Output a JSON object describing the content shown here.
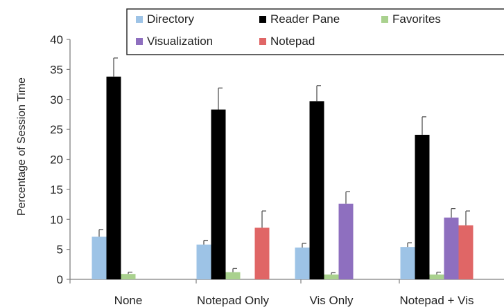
{
  "chart_data": {
    "type": "bar",
    "title": "",
    "xlabel": "",
    "ylabel": "Percentage of Session Time",
    "ylim": [
      0,
      40
    ],
    "yticks": [
      0,
      5,
      10,
      15,
      20,
      25,
      30,
      35,
      40
    ],
    "grid": false,
    "legend_position": "top",
    "categories": [
      "None",
      "Notepad Only",
      "Vis Only",
      "Notepad + Vis"
    ],
    "series": [
      {
        "name": "Directory",
        "color": "#9dc3e6",
        "values": [
          7.1,
          5.8,
          5.3,
          5.4
        ],
        "errors": [
          1.2,
          0.7,
          0.7,
          0.7
        ]
      },
      {
        "name": "Reader Pane",
        "color": "#000000",
        "values": [
          33.8,
          28.3,
          29.7,
          24.1
        ],
        "errors": [
          3.1,
          3.6,
          2.6,
          3.0
        ]
      },
      {
        "name": "Favorites",
        "color": "#a9d18e",
        "values": [
          0.9,
          1.2,
          0.8,
          0.8
        ],
        "errors": [
          0.3,
          0.6,
          0.3,
          0.4
        ]
      },
      {
        "name": "Visualization",
        "color": "#8e6fbf",
        "values": [
          null,
          null,
          12.6,
          10.3
        ],
        "errors": [
          null,
          null,
          2.0,
          1.5
        ]
      },
      {
        "name": "Notepad",
        "color": "#e06666",
        "values": [
          null,
          8.6,
          null,
          9.0
        ],
        "errors": [
          null,
          2.8,
          null,
          2.4
        ]
      }
    ]
  }
}
